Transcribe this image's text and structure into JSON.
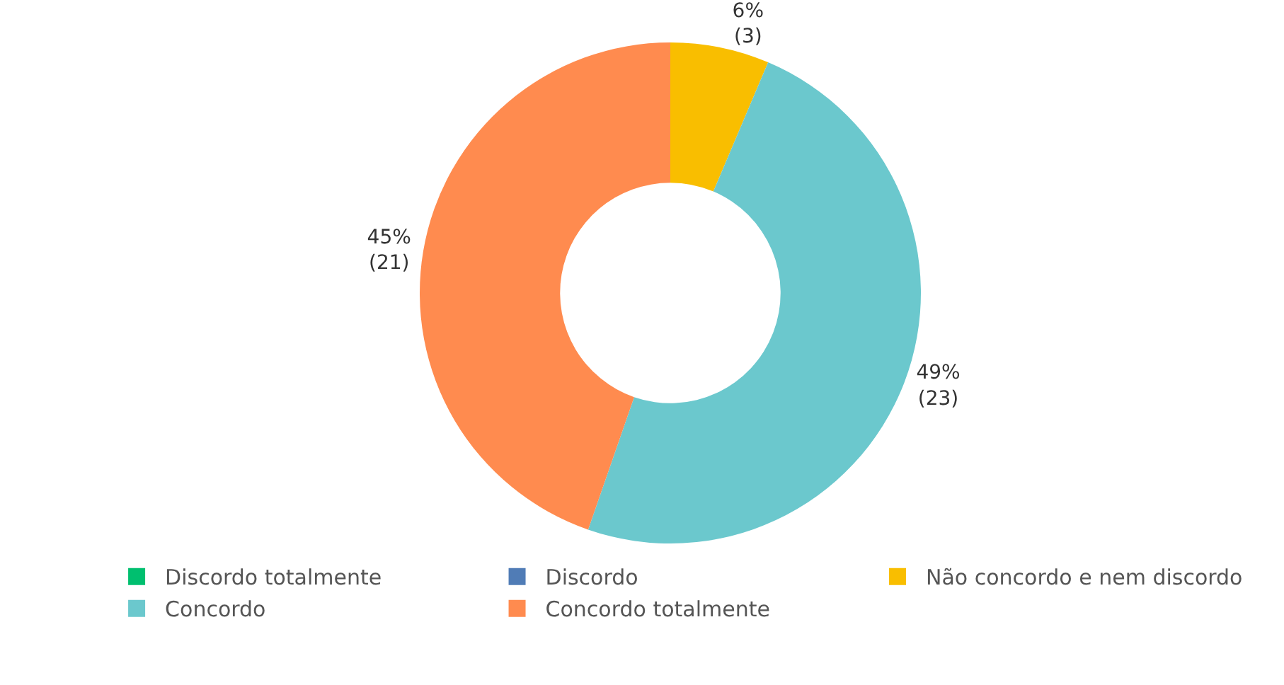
{
  "chart_data": {
    "type": "donut",
    "categories": [
      "Discordo totalmente",
      "Discordo",
      "Não concordo e nem discordo",
      "Concordo",
      "Concordo totalmente"
    ],
    "values": [
      0,
      0,
      3,
      23,
      21
    ],
    "colors": [
      "#00bf6f",
      "#507cb6",
      "#f9be00",
      "#6bc8cd",
      "#ff8b4f"
    ],
    "value_labels": [
      null,
      null,
      "6%\n(3)",
      "49%\n(23)",
      "45%\n(21)"
    ],
    "legend": "bottom"
  }
}
